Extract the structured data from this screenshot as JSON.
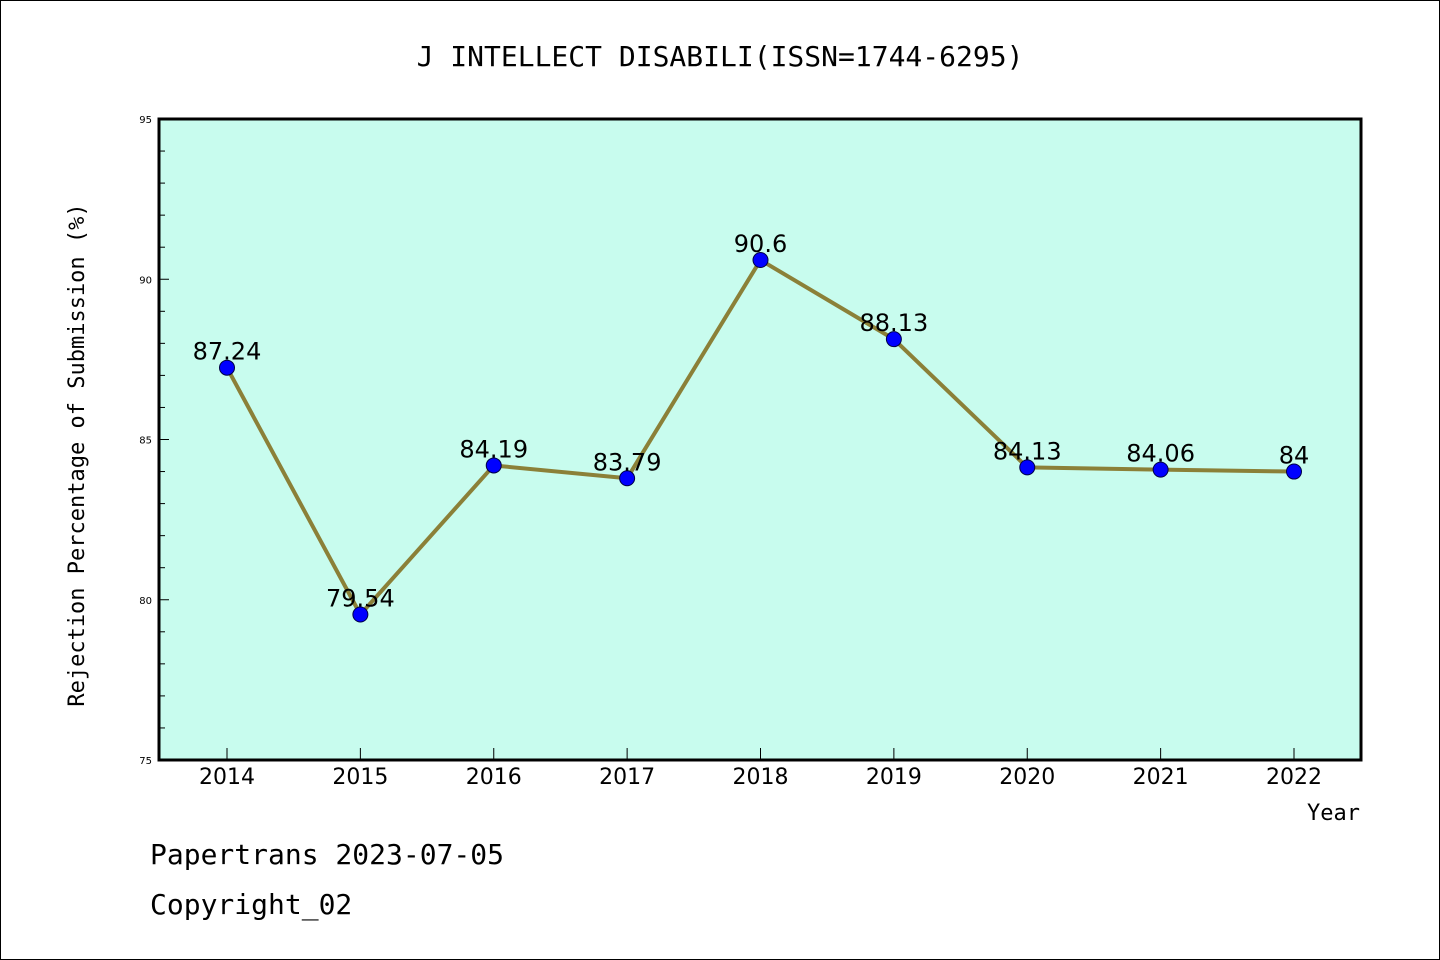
{
  "chart_data": {
    "type": "line",
    "title": "J INTELLECT DISABILI(ISSN=1744-6295)",
    "xlabel": "Year",
    "ylabel": "Rejection Percentage of Submission (%)",
    "categories": [
      "2014",
      "2015",
      "2016",
      "2017",
      "2018",
      "2019",
      "2020",
      "2021",
      "2022"
    ],
    "values": [
      87.24,
      79.54,
      84.19,
      83.79,
      90.6,
      88.13,
      84.13,
      84.06,
      84
    ],
    "data_labels": [
      "87.24",
      "79.54",
      "84.19",
      "83.79",
      "90.6",
      "88.13",
      "84.13",
      "84.06",
      "84"
    ],
    "ylim": [
      75,
      95
    ],
    "yticks": [
      75,
      80,
      85,
      90,
      95
    ],
    "grid": false,
    "legend": "none",
    "colors": {
      "plot_background": "#c8fcee",
      "line": "#8b8038",
      "marker": "#0000ff"
    }
  },
  "footer": {
    "line1": "Papertrans 2023-07-05",
    "line2": "Copyright_02"
  }
}
